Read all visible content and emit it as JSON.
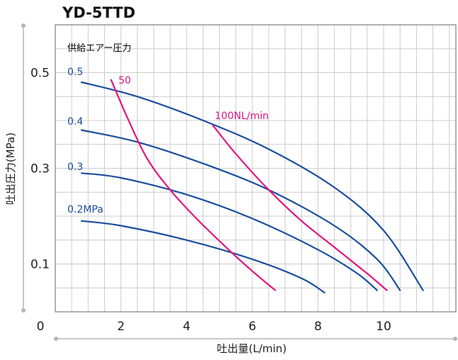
{
  "chart_data": {
    "type": "line",
    "title": "YD-5TTD",
    "xlabel": "吐出量(L/min)",
    "ylabel": "吐出圧力(MPa)",
    "xlim": [
      0,
      12.2
    ],
    "ylim": [
      0,
      0.6
    ],
    "x_ticks": [
      0,
      2,
      4,
      6,
      8,
      10
    ],
    "x_tick_labels": [
      "0",
      "2",
      "4",
      "6",
      "8",
      "10"
    ],
    "y_ticks": [
      0.1,
      0.3,
      0.5
    ],
    "y_tick_labels": [
      "0.1",
      "0.3",
      "0.5"
    ],
    "grid": true,
    "legend_title": "供給エアー圧力",
    "colors": {
      "pressure": "#1a4f9e",
      "airflow": "#e0167f",
      "grid": "#cccccc",
      "axis": "#999999"
    },
    "series": [
      {
        "name": "0.5",
        "group": "pressure",
        "label": "0.5",
        "x": [
          0.8,
          2.5,
          4.5,
          6.5,
          8.5,
          10.0,
          11.2
        ],
        "y": [
          0.48,
          0.45,
          0.4,
          0.34,
          0.26,
          0.17,
          0.045
        ]
      },
      {
        "name": "0.4",
        "group": "pressure",
        "label": "0.4",
        "x": [
          0.8,
          2.5,
          4.5,
          6.5,
          8.5,
          9.8,
          10.5
        ],
        "y": [
          0.38,
          0.355,
          0.31,
          0.255,
          0.18,
          0.11,
          0.045
        ]
      },
      {
        "name": "0.3",
        "group": "pressure",
        "label": "0.3",
        "x": [
          0.8,
          2.0,
          4.0,
          6.0,
          8.0,
          9.2,
          9.8
        ],
        "y": [
          0.29,
          0.28,
          0.245,
          0.195,
          0.13,
          0.08,
          0.045
        ]
      },
      {
        "name": "0.2MPa",
        "group": "pressure",
        "label": "0.2MPa",
        "x": [
          0.8,
          2.0,
          4.0,
          6.0,
          7.5,
          8.2
        ],
        "y": [
          0.19,
          0.18,
          0.15,
          0.11,
          0.07,
          0.04
        ]
      },
      {
        "name": "50",
        "group": "airflow",
        "label": "50",
        "x": [
          1.7,
          2.2,
          2.8,
          3.5,
          4.3,
          5.2,
          6.0,
          6.7
        ],
        "y": [
          0.485,
          0.405,
          0.32,
          0.255,
          0.195,
          0.135,
          0.085,
          0.045
        ]
      },
      {
        "name": "100NL/min",
        "group": "airflow",
        "label": "100NL/min",
        "x": [
          4.8,
          5.5,
          6.5,
          7.5,
          8.5,
          9.5,
          10.1
        ],
        "y": [
          0.39,
          0.33,
          0.255,
          0.19,
          0.135,
          0.08,
          0.045
        ]
      }
    ]
  }
}
